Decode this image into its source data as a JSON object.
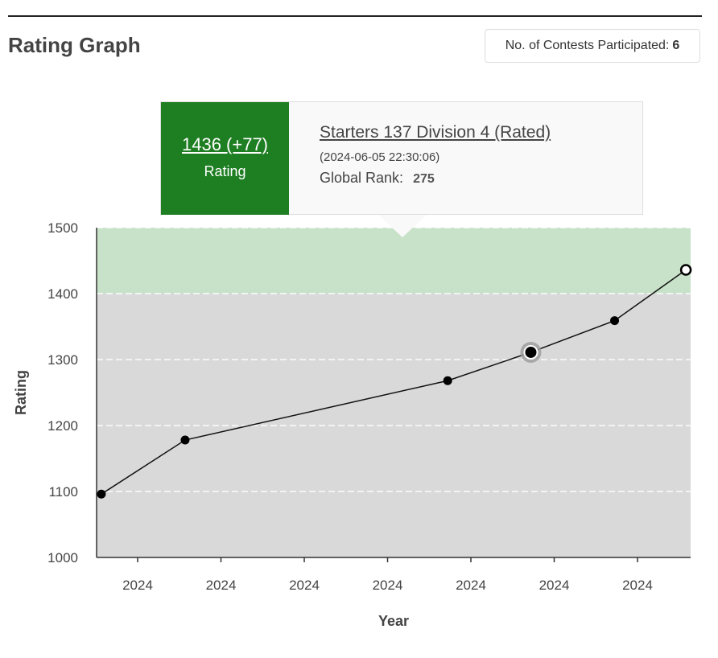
{
  "page": {
    "title": "Rating Graph",
    "contests_label": "No. of Contests Participated:",
    "contests_count": "6"
  },
  "tooltip": {
    "rating_value": "1436 (+77)",
    "rating_label": "Rating",
    "contest_name": "Starters 137 Division 4 (Rated)",
    "datetime": "(2024-06-05 22:30:06)",
    "rank_label": "Global Rank:",
    "rank_value": "275"
  },
  "colors": {
    "band_upper": "#c8e2c9",
    "band_lower": "#d9d9d9",
    "line": "#111111",
    "tooltip_accent": "#1e7e22"
  },
  "chart_data": {
    "type": "line",
    "title": "",
    "xlabel": "Year",
    "ylabel": "Rating",
    "ylim": [
      1000,
      1500
    ],
    "yticks": [
      1000,
      1100,
      1200,
      1300,
      1400,
      1500
    ],
    "xtick_labels": [
      "2024",
      "2024",
      "2024",
      "2024",
      "2024",
      "2024",
      "2024"
    ],
    "grid": true,
    "bands": [
      {
        "from": 1400,
        "to": 1500,
        "color": "#c8e2c9"
      },
      {
        "from": 1000,
        "to": 1400,
        "color": "#d9d9d9"
      }
    ],
    "series": [
      {
        "values": [
          1096,
          1178,
          1268,
          1311,
          1359,
          1436
        ]
      }
    ],
    "x_positions": [
      0.008,
      0.149,
      0.591,
      0.731,
      0.872,
      0.992
    ],
    "highlighted_index": 3,
    "selected_index": 5
  }
}
